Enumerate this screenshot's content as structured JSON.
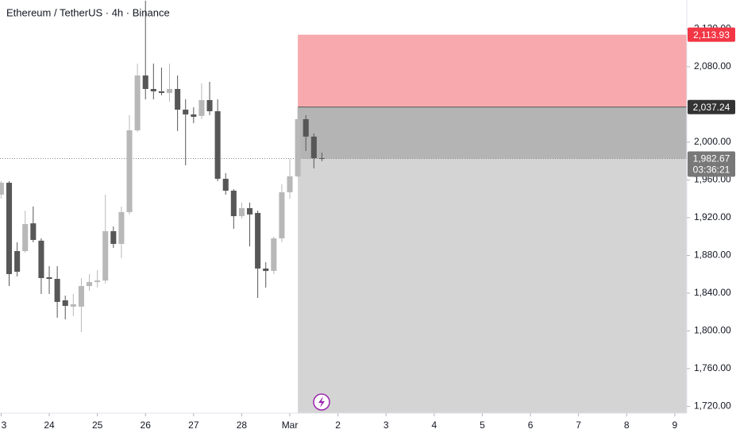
{
  "chart_data": {
    "type": "candlestick",
    "title": "Ethereum / TetherUS · 4h · Binance",
    "x": [
      -6,
      -5,
      -4,
      -3,
      -2,
      -1,
      0,
      1,
      2,
      3,
      4,
      5,
      6,
      7,
      8,
      9,
      10,
      11,
      12,
      13,
      14,
      15,
      16,
      17,
      18,
      19,
      20,
      21,
      22,
      23,
      24,
      25,
      26,
      27,
      28,
      29,
      30,
      31,
      32,
      33,
      34
    ],
    "open": [
      1944.4,
      1957.0,
      1884.6,
      1884.6,
      1914.0,
      1895.6,
      1856.8,
      1855.1,
      1832.4,
      1825.7,
      1825.7,
      1847.5,
      1851.8,
      1853.4,
      1905.7,
      1892.2,
      1925.9,
      2012.6,
      2070.7,
      2056.4,
      2053.9,
      2052.2,
      2056.4,
      2034.5,
      2029.4,
      2027.8,
      2044.6,
      2032.8,
      1961.2,
      1948.6,
      1921.6,
      1930.1,
      1925.0,
      1866.1,
      1863.5,
      1898.1,
      1946.9,
      1963.8,
      2024.4,
      2005.9,
      1983.1
    ],
    "high": [
      1958.7,
      1958.7,
      1893.9,
      1927.5,
      1931.8,
      1898.1,
      1868.6,
      1868.6,
      1837.4,
      1839.1,
      1856.0,
      1860.2,
      1864.4,
      1944.4,
      1910.7,
      1931.8,
      2028.6,
      2083.3,
      2150.0,
      2083.3,
      2079.1,
      2083.3,
      2070.7,
      2045.4,
      2037.0,
      2062.3,
      2064.0,
      2045.4,
      1967.1,
      1950.3,
      1936.0,
      1936.0,
      1927.5,
      1872.8,
      1899.8,
      1955.3,
      1982.3,
      2037.0,
      2028.6,
      2009.2,
      1989.0
    ],
    "low": [
      1940.2,
      1847.5,
      1857.7,
      1882.9,
      1893.9,
      1839.1,
      1839.1,
      1813.9,
      1812.2,
      1815.6,
      1798.7,
      1842.5,
      1845.9,
      1850.1,
      1888.0,
      1877.0,
      1923.4,
      2010.9,
      2045.4,
      2045.4,
      2049.7,
      2042.9,
      2011.8,
      1975.5,
      2020.2,
      2024.4,
      2028.6,
      1958.7,
      1944.4,
      1908.2,
      1919.1,
      1889.6,
      1834.9,
      1845.9,
      1860.2,
      1893.9,
      1940.2,
      1963.0,
      1990.7,
      1972.2,
      1979.8
    ],
    "close": [
      1957.0,
      1860.2,
      1862.7,
      1913.2,
      1896.4,
      1856.0,
      1855.1,
      1830.7,
      1826.5,
      1828.2,
      1847.5,
      1851.8,
      1853.4,
      1905.7,
      1892.2,
      1925.9,
      2012.6,
      2070.7,
      2056.4,
      2053.9,
      2052.2,
      2056.4,
      2034.5,
      2029.4,
      2026.9,
      2044.6,
      2032.8,
      1961.2,
      1948.6,
      1921.6,
      1930.1,
      1923.4,
      1866.1,
      1863.5,
      1898.1,
      1946.9,
      1963.8,
      2024.4,
      2005.9,
      1983.1,
      1982.67
    ],
    "up_color": "#b8b8b8",
    "down_color": "#575757",
    "xlim": [
      -6.14,
      79.5
    ],
    "ylim": [
      1712.8,
      2150.7
    ],
    "xticks": [
      {
        "value": -6,
        "label": "3"
      },
      {
        "value": 0,
        "label": "24"
      },
      {
        "value": 6,
        "label": "25"
      },
      {
        "value": 12,
        "label": "26"
      },
      {
        "value": 18,
        "label": "27"
      },
      {
        "value": 24,
        "label": "28"
      },
      {
        "value": 30,
        "label": "Mar"
      },
      {
        "value": 36,
        "label": "2"
      },
      {
        "value": 42,
        "label": "3"
      },
      {
        "value": 48,
        "label": "4"
      },
      {
        "value": 54,
        "label": "5"
      },
      {
        "value": 60,
        "label": "6"
      },
      {
        "value": 66,
        "label": "7"
      },
      {
        "value": 72,
        "label": "8"
      },
      {
        "value": 78,
        "label": "9"
      }
    ],
    "yticks": [
      {
        "value": 2120,
        "label": "2,120.00"
      },
      {
        "value": 2080,
        "label": "2,080.00"
      },
      {
        "value": 2000,
        "label": "2,000.00"
      },
      {
        "value": 1960,
        "label": "1,960.00"
      },
      {
        "value": 1920,
        "label": "1,920.00"
      },
      {
        "value": 1880,
        "label": "1,880.00"
      },
      {
        "value": 1840,
        "label": "1,840.00"
      },
      {
        "value": 1800,
        "label": "1,800.00"
      },
      {
        "value": 1760,
        "label": "1,760.00"
      },
      {
        "value": 1720,
        "label": "1,720.00"
      }
    ],
    "grid": false,
    "position": {
      "start": 31,
      "entry": {
        "value": 2037.24,
        "label": "2,037.24"
      },
      "stop": {
        "value": 2113.93,
        "label": "2,113.93"
      },
      "stop_color": "#f7a9ad",
      "zone_color": "#d4d4d4"
    },
    "last_price": {
      "value": 1982.67,
      "label": "1,982.67"
    },
    "countdown": "03:36:21"
  }
}
